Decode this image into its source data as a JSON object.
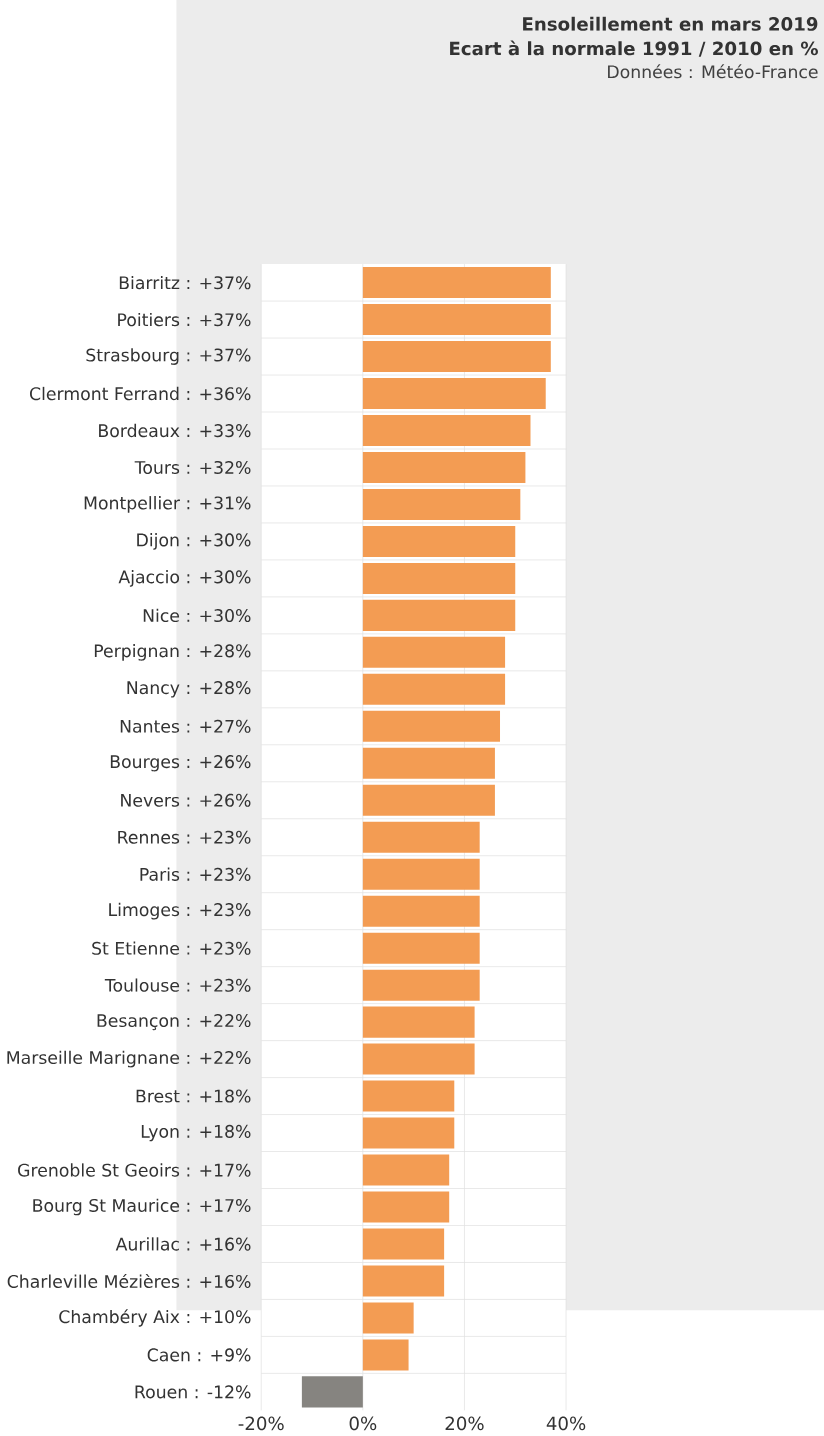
{
  "chart_data": {
    "type": "bar",
    "orientation": "horizontal",
    "title": "Ensoleillement en mars 2019",
    "subtitle": "Ecart à la normale 1991 / 2010 en %",
    "annotations": [
      "Données : Météo-France"
    ],
    "categories": [
      "Biarritz : +37%",
      "Poitiers : +37%",
      "Strasbourg : +37%",
      "Clermont Ferrand : +36%",
      "Bordeaux : +33%",
      "Tours : +32%",
      "Montpellier : +31%",
      "Dijon : +30%",
      "Ajaccio : +30%",
      "Nice : +30%",
      "Perpignan : +28%",
      "Nancy : +28%",
      "Nantes : +27%",
      "Bourges : +26%",
      "Nevers : +26%",
      "Rennes : +23%",
      "Paris : +23%",
      "Limoges : +23%",
      "St Etienne : +23%",
      "Toulouse : +23%",
      "Besançon : +22%",
      "Marseille Marignane : +22%",
      "Brest : +18%",
      "Lyon : +18%",
      "Grenoble St Geoirs : +17%",
      "Bourg St Maurice : +17%",
      "Aurillac : +16%",
      "Charleville Mézières : +16%",
      "Chambéry Aix : +10%",
      "Caen : +9%",
      "Rouen : -12%"
    ],
    "values": [
      37,
      37,
      37,
      36,
      33,
      32,
      31,
      30,
      30,
      30,
      28,
      28,
      27,
      26,
      26,
      23,
      23,
      23,
      23,
      23,
      22,
      22,
      18,
      18,
      17,
      17,
      16,
      16,
      10,
      9,
      -12
    ],
    "colors": [
      "#f39c53",
      "#f39c53",
      "#f39c53",
      "#f39c53",
      "#f39c53",
      "#f39c53",
      "#f39c53",
      "#f39c53",
      "#f39c53",
      "#f39c53",
      "#f39c53",
      "#f39c53",
      "#f39c53",
      "#f39c53",
      "#f39c53",
      "#f39c53",
      "#f39c53",
      "#f39c53",
      "#f39c53",
      "#f39c53",
      "#f39c53",
      "#f39c53",
      "#f39c53",
      "#f39c53",
      "#f39c53",
      "#f39c53",
      "#f39c53",
      "#f39c53",
      "#f39c53",
      "#f39c53",
      "#868480"
    ],
    "xlim": [
      -20,
      40
    ],
    "xticks": [
      {
        "value": -20,
        "label": "-20%"
      },
      {
        "value": 0,
        "label": "0%"
      },
      {
        "value": 20,
        "label": "20%"
      },
      {
        "value": 40,
        "label": "40%"
      }
    ],
    "grid": true
  }
}
